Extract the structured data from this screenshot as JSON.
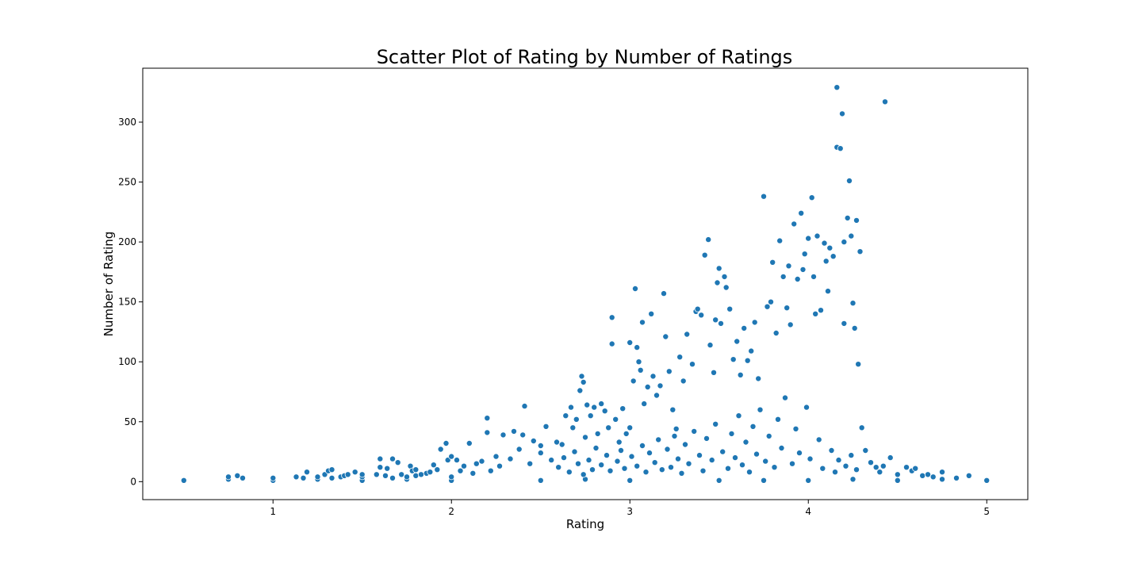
{
  "chart_data": {
    "type": "scatter",
    "title": "Scatter Plot of Rating by Number of Ratings",
    "xlabel": "Rating",
    "ylabel": "Number of Rating",
    "xlim": [
      0.27,
      5.23
    ],
    "ylim": [
      -15,
      345
    ],
    "x_ticks": [
      1,
      2,
      3,
      4,
      5
    ],
    "y_ticks": [
      0,
      50,
      100,
      150,
      200,
      250,
      300
    ],
    "grid": false,
    "legend": "none",
    "marker_color": "#1f77b4",
    "marker_edge_color": "#ffffff",
    "points": [
      [
        0.5,
        1
      ],
      [
        0.75,
        2
      ],
      [
        0.75,
        4
      ],
      [
        0.8,
        5
      ],
      [
        0.83,
        3
      ],
      [
        1.0,
        1
      ],
      [
        1.0,
        3
      ],
      [
        1.13,
        4
      ],
      [
        1.17,
        3
      ],
      [
        1.19,
        8
      ],
      [
        1.25,
        2
      ],
      [
        1.25,
        4
      ],
      [
        1.29,
        6
      ],
      [
        1.31,
        9
      ],
      [
        1.33,
        10
      ],
      [
        1.33,
        3
      ],
      [
        1.38,
        4
      ],
      [
        1.4,
        5
      ],
      [
        1.42,
        6
      ],
      [
        1.46,
        8
      ],
      [
        1.5,
        1
      ],
      [
        1.5,
        4
      ],
      [
        1.5,
        6
      ],
      [
        1.58,
        6
      ],
      [
        1.6,
        12
      ],
      [
        1.6,
        19
      ],
      [
        1.63,
        5
      ],
      [
        1.64,
        11
      ],
      [
        1.67,
        19
      ],
      [
        1.67,
        3
      ],
      [
        1.7,
        16
      ],
      [
        1.72,
        6
      ],
      [
        1.75,
        2
      ],
      [
        1.75,
        4
      ],
      [
        1.77,
        13
      ],
      [
        1.78,
        9
      ],
      [
        1.8,
        10
      ],
      [
        1.8,
        5
      ],
      [
        1.83,
        6
      ],
      [
        1.86,
        7
      ],
      [
        1.88,
        8
      ],
      [
        1.9,
        14
      ],
      [
        1.92,
        10
      ],
      [
        1.94,
        27
      ],
      [
        1.97,
        32
      ],
      [
        1.98,
        18
      ],
      [
        2.0,
        1
      ],
      [
        2.0,
        4
      ],
      [
        2.0,
        21
      ],
      [
        2.03,
        18
      ],
      [
        2.05,
        9
      ],
      [
        2.07,
        13
      ],
      [
        2.1,
        32
      ],
      [
        2.12,
        7
      ],
      [
        2.14,
        15
      ],
      [
        2.17,
        17
      ],
      [
        2.2,
        53
      ],
      [
        2.2,
        41
      ],
      [
        2.22,
        9
      ],
      [
        2.25,
        21
      ],
      [
        2.27,
        13
      ],
      [
        2.29,
        39
      ],
      [
        2.33,
        19
      ],
      [
        2.35,
        42
      ],
      [
        2.38,
        27
      ],
      [
        2.4,
        39
      ],
      [
        2.41,
        63
      ],
      [
        2.44,
        15
      ],
      [
        2.46,
        34
      ],
      [
        2.5,
        1
      ],
      [
        2.5,
        24
      ],
      [
        2.5,
        30
      ],
      [
        2.53,
        46
      ],
      [
        2.56,
        18
      ],
      [
        2.59,
        33
      ],
      [
        2.62,
        31
      ],
      [
        2.64,
        55
      ],
      [
        2.67,
        62
      ],
      [
        2.68,
        45
      ],
      [
        2.7,
        52
      ],
      [
        2.72,
        76
      ],
      [
        2.73,
        88
      ],
      [
        2.74,
        83
      ],
      [
        2.75,
        2
      ],
      [
        2.75,
        37
      ],
      [
        2.76,
        64
      ],
      [
        2.78,
        55
      ],
      [
        2.8,
        62
      ],
      [
        2.82,
        40
      ],
      [
        2.84,
        65
      ],
      [
        2.86,
        59
      ],
      [
        2.88,
        45
      ],
      [
        2.9,
        137
      ],
      [
        2.9,
        115
      ],
      [
        2.92,
        52
      ],
      [
        2.94,
        33
      ],
      [
        2.96,
        61
      ],
      [
        2.98,
        40
      ],
      [
        3.0,
        1
      ],
      [
        3.0,
        116
      ],
      [
        3.0,
        45
      ],
      [
        3.02,
        84
      ],
      [
        3.03,
        161
      ],
      [
        3.04,
        112
      ],
      [
        3.05,
        100
      ],
      [
        3.06,
        93
      ],
      [
        3.07,
        133
      ],
      [
        3.08,
        65
      ],
      [
        3.1,
        79
      ],
      [
        3.12,
        140
      ],
      [
        3.13,
        88
      ],
      [
        3.15,
        72
      ],
      [
        3.17,
        80
      ],
      [
        3.19,
        157
      ],
      [
        3.2,
        121
      ],
      [
        3.22,
        92
      ],
      [
        3.24,
        60
      ],
      [
        3.26,
        44
      ],
      [
        3.28,
        104
      ],
      [
        3.3,
        84
      ],
      [
        3.32,
        123
      ],
      [
        3.35,
        98
      ],
      [
        3.37,
        142
      ],
      [
        3.38,
        144
      ],
      [
        3.4,
        139
      ],
      [
        3.42,
        189
      ],
      [
        3.44,
        202
      ],
      [
        3.45,
        114
      ],
      [
        3.47,
        91
      ],
      [
        3.48,
        135
      ],
      [
        3.49,
        166
      ],
      [
        3.5,
        1
      ],
      [
        3.5,
        178
      ],
      [
        3.51,
        132
      ],
      [
        3.53,
        171
      ],
      [
        3.54,
        162
      ],
      [
        3.56,
        144
      ],
      [
        3.58,
        102
      ],
      [
        3.6,
        117
      ],
      [
        3.62,
        89
      ],
      [
        3.64,
        128
      ],
      [
        3.66,
        101
      ],
      [
        3.68,
        109
      ],
      [
        3.7,
        133
      ],
      [
        3.72,
        86
      ],
      [
        3.75,
        1
      ],
      [
        3.75,
        238
      ],
      [
        3.77,
        146
      ],
      [
        3.79,
        150
      ],
      [
        3.8,
        183
      ],
      [
        3.82,
        124
      ],
      [
        3.84,
        201
      ],
      [
        3.86,
        171
      ],
      [
        3.88,
        145
      ],
      [
        3.89,
        180
      ],
      [
        3.9,
        131
      ],
      [
        3.92,
        215
      ],
      [
        3.94,
        169
      ],
      [
        3.96,
        224
      ],
      [
        3.97,
        177
      ],
      [
        3.98,
        190
      ],
      [
        4.0,
        1
      ],
      [
        4.0,
        203
      ],
      [
        4.02,
        237
      ],
      [
        4.03,
        171
      ],
      [
        4.04,
        140
      ],
      [
        4.05,
        205
      ],
      [
        4.07,
        143
      ],
      [
        4.09,
        199
      ],
      [
        4.1,
        184
      ],
      [
        4.11,
        159
      ],
      [
        4.12,
        195
      ],
      [
        4.14,
        188
      ],
      [
        4.16,
        329
      ],
      [
        4.16,
        279
      ],
      [
        4.18,
        278
      ],
      [
        4.19,
        307
      ],
      [
        4.2,
        200
      ],
      [
        4.2,
        132
      ],
      [
        4.22,
        220
      ],
      [
        4.23,
        251
      ],
      [
        4.24,
        205
      ],
      [
        4.25,
        149
      ],
      [
        4.25,
        2
      ],
      [
        4.26,
        128
      ],
      [
        4.27,
        218
      ],
      [
        4.28,
        98
      ],
      [
        4.29,
        192
      ],
      [
        4.3,
        45
      ],
      [
        4.32,
        26
      ],
      [
        4.35,
        16
      ],
      [
        4.38,
        12
      ],
      [
        4.4,
        8
      ],
      [
        4.42,
        13
      ],
      [
        4.43,
        317
      ],
      [
        4.46,
        20
      ],
      [
        4.5,
        1
      ],
      [
        4.5,
        6
      ],
      [
        4.55,
        12
      ],
      [
        4.58,
        9
      ],
      [
        4.6,
        11
      ],
      [
        4.64,
        5
      ],
      [
        4.67,
        6
      ],
      [
        4.7,
        4
      ],
      [
        4.75,
        2
      ],
      [
        4.75,
        8
      ],
      [
        4.83,
        3
      ],
      [
        4.9,
        5
      ],
      [
        5.0,
        1
      ],
      [
        2.6,
        12
      ],
      [
        2.63,
        20
      ],
      [
        2.66,
        8
      ],
      [
        2.69,
        25
      ],
      [
        2.71,
        15
      ],
      [
        2.74,
        6
      ],
      [
        2.77,
        18
      ],
      [
        2.79,
        10
      ],
      [
        2.81,
        28
      ],
      [
        2.84,
        14
      ],
      [
        2.87,
        22
      ],
      [
        2.89,
        9
      ],
      [
        2.93,
        17
      ],
      [
        2.95,
        26
      ],
      [
        2.97,
        11
      ],
      [
        3.01,
        21
      ],
      [
        3.04,
        13
      ],
      [
        3.07,
        30
      ],
      [
        3.09,
        8
      ],
      [
        3.11,
        24
      ],
      [
        3.14,
        16
      ],
      [
        3.16,
        35
      ],
      [
        3.18,
        10
      ],
      [
        3.21,
        27
      ],
      [
        3.23,
        12
      ],
      [
        3.25,
        38
      ],
      [
        3.27,
        19
      ],
      [
        3.29,
        7
      ],
      [
        3.31,
        31
      ],
      [
        3.33,
        15
      ],
      [
        3.36,
        42
      ],
      [
        3.39,
        22
      ],
      [
        3.41,
        9
      ],
      [
        3.43,
        36
      ],
      [
        3.46,
        18
      ],
      [
        3.48,
        48
      ],
      [
        3.52,
        25
      ],
      [
        3.55,
        11
      ],
      [
        3.57,
        40
      ],
      [
        3.59,
        20
      ],
      [
        3.61,
        55
      ],
      [
        3.63,
        14
      ],
      [
        3.65,
        33
      ],
      [
        3.67,
        8
      ],
      [
        3.69,
        46
      ],
      [
        3.71,
        23
      ],
      [
        3.73,
        60
      ],
      [
        3.76,
        17
      ],
      [
        3.78,
        38
      ],
      [
        3.81,
        12
      ],
      [
        3.83,
        52
      ],
      [
        3.85,
        28
      ],
      [
        3.87,
        70
      ],
      [
        3.91,
        15
      ],
      [
        3.93,
        44
      ],
      [
        3.95,
        24
      ],
      [
        3.99,
        62
      ],
      [
        4.01,
        19
      ],
      [
        4.06,
        35
      ],
      [
        4.08,
        11
      ],
      [
        4.13,
        26
      ],
      [
        4.15,
        8
      ],
      [
        4.17,
        18
      ],
      [
        4.21,
        13
      ],
      [
        4.24,
        22
      ],
      [
        4.27,
        10
      ]
    ]
  }
}
